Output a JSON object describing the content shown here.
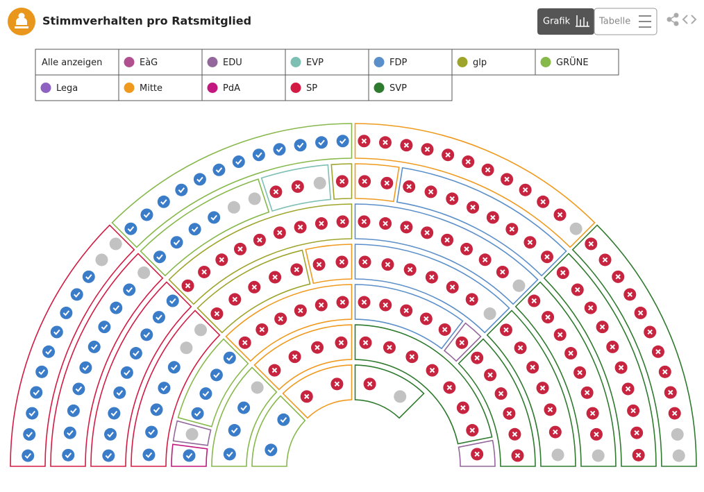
{
  "header": {
    "title": "Stimmverhalten pro Ratsmitglied",
    "buttons": [
      "Grafik",
      "Tabelle"
    ]
  },
  "legend": {
    "all": "Alle anzeigen",
    "items": [
      {
        "name": "EàG",
        "color": "#b0508f"
      },
      {
        "name": "EDU",
        "color": "#93679b"
      },
      {
        "name": "EVP",
        "color": "#7dbfb3"
      },
      {
        "name": "FDP",
        "color": "#5b8fc9"
      },
      {
        "name": "glp",
        "color": "#9ea42a"
      },
      {
        "name": "GRÜNE",
        "color": "#86b84a"
      },
      {
        "name": "Lega",
        "color": "#8d62c0"
      },
      {
        "name": "Mitte",
        "color": "#ef9a1f"
      },
      {
        "name": "PdA",
        "color": "#c2177f"
      },
      {
        "name": "SP",
        "color": "#d21a42"
      },
      {
        "name": "SVP",
        "color": "#2e7a2e"
      }
    ]
  },
  "chart_data": {
    "type": "parliament",
    "rows": [
      [
        {
          "party": "GRÜNE",
          "yes": 2
        },
        {
          "party": "Mitte",
          "no": 2
        },
        {
          "party": "SVP",
          "no": 1,
          "absent": 1
        }
      ],
      [
        {
          "party": "GRÜNE",
          "yes": 3,
          "absent": 1
        },
        {
          "party": "Mitte",
          "no": 4
        },
        {
          "party": "SVP",
          "no": 7
        },
        {
          "party": "EDU",
          "no": 1
        }
      ],
      [
        {
          "party": "PdA",
          "yes": 1
        },
        {
          "party": "EDU",
          "absent": 1
        },
        {
          "party": "GRÜNE",
          "yes": 4
        },
        {
          "party": "Mitte",
          "no": 6
        },
        {
          "party": "FDP",
          "no": 5
        },
        {
          "party": "EDU",
          "no": 1
        },
        {
          "party": "SVP",
          "no": 6
        }
      ],
      [
        {
          "party": "SP",
          "yes": 5,
          "absent": 2
        },
        {
          "party": "glp",
          "no": 5
        },
        {
          "party": "Mitte",
          "no": 2
        },
        {
          "party": "FDP",
          "no": 6,
          "absent": 1
        },
        {
          "party": "SVP",
          "no": 6,
          "absent": 1
        }
      ],
      [
        {
          "party": "SP",
          "yes": 9
        },
        {
          "party": "glp",
          "no": 9
        },
        {
          "party": "FDP",
          "no": 8,
          "absent": 1
        },
        {
          "party": "SVP",
          "no": 8,
          "absent": 1
        }
      ],
      [
        {
          "party": "SP",
          "yes": 9,
          "absent": 1
        },
        {
          "party": "GRÜNE",
          "yes": 4,
          "absent": 2
        },
        {
          "party": "EVP",
          "no": 2,
          "absent": 1
        },
        {
          "party": "glp",
          "no": 1
        },
        {
          "party": "Mitte",
          "no": 2
        },
        {
          "party": "FDP",
          "no": 8
        },
        {
          "party": "SVP",
          "no": 10
        }
      ],
      [
        {
          "party": "SP",
          "yes": 10,
          "absent": 2
        },
        {
          "party": "GRÜNE",
          "yes": 12
        },
        {
          "party": "Mitte",
          "no": 11,
          "absent": 1
        },
        {
          "party": "SVP",
          "no": 10,
          "absent": 2
        }
      ]
    ]
  }
}
